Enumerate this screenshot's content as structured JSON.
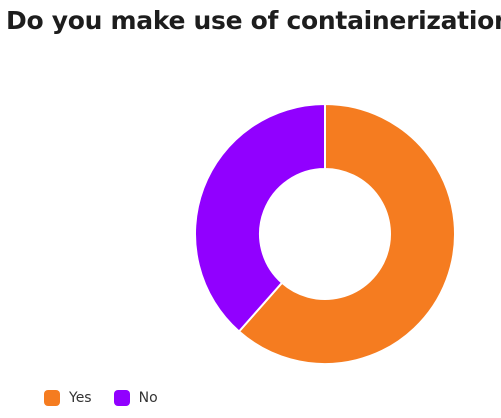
{
  "chart_data": {
    "type": "pie",
    "title": "Do you make use of containerization?",
    "categories": [
      "Yes",
      "No"
    ],
    "values": [
      61.5,
      38.5
    ],
    "colors": [
      "#f57c20",
      "#9100ff"
    ],
    "donut": true,
    "legend": "bottom-left"
  }
}
